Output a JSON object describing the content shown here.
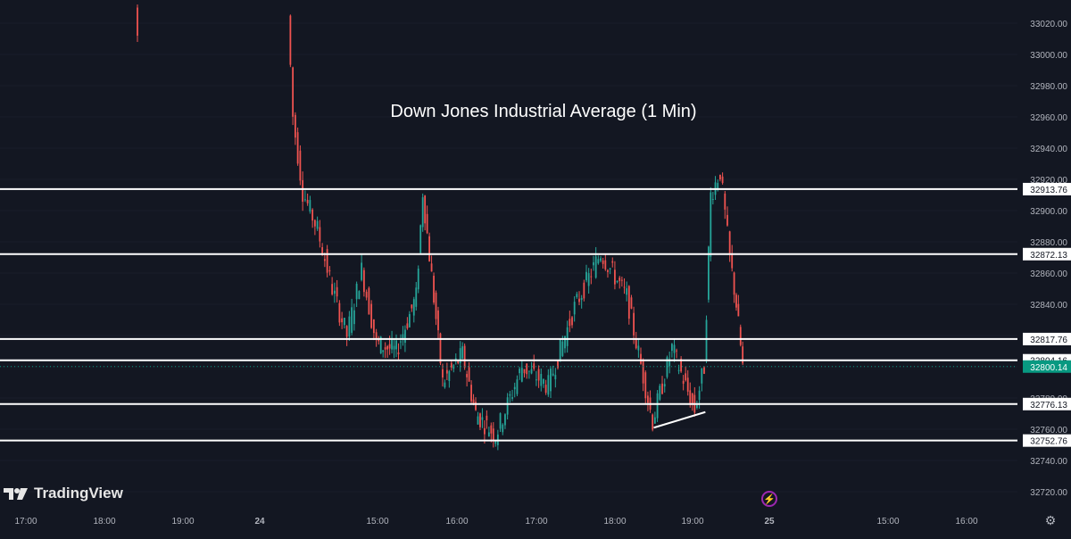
{
  "chart_data": {
    "type": "candlestick",
    "title": "Down Jones Industrial Average (1 Min)",
    "ylim": [
      32710,
      33030
    ],
    "y_ticks": [
      "33020.00",
      "33000.00",
      "32980.00",
      "32960.00",
      "32940.00",
      "32920.00",
      "32900.00",
      "32880.00",
      "32860.00",
      "32840.00",
      "32820.00",
      "32800.00",
      "32780.00",
      "32760.00",
      "32740.00",
      "32720.00"
    ],
    "x_ticks": [
      "17:00",
      "18:00",
      "19:00",
      "24",
      "15:00",
      "16:00",
      "17:00",
      "18:00",
      "19:00",
      "25",
      "15:00",
      "16:00"
    ],
    "levels": [
      {
        "label": "32913.76",
        "value": 32913.76
      },
      {
        "label": "32872.13",
        "value": 32872.13
      },
      {
        "label": "32817.76",
        "value": 32817.76
      },
      {
        "label": "32804.16",
        "value": 32804.16
      },
      {
        "label": "32776.13",
        "value": 32776.13
      },
      {
        "label": "32752.76",
        "value": 32752.76
      }
    ],
    "last_price": {
      "label": "32800.14",
      "value": 32800.14,
      "color": "#089981"
    },
    "trendline": {
      "from": {
        "time": "18:30",
        "price": 32761
      },
      "to": {
        "time": "19:20",
        "price": 32771
      }
    },
    "colors": {
      "up": "#26a69a",
      "down": "#ef5350",
      "background": "#131722",
      "level_line": "#ffffff"
    },
    "price_path": [
      {
        "session": "pre-24",
        "time": "18:25",
        "price": 33030
      },
      {
        "session": "24",
        "time": "13:30",
        "price": 33025
      },
      {
        "session": "24",
        "time": "13:35",
        "price": 32960
      },
      {
        "session": "24",
        "time": "13:45",
        "price": 32912
      },
      {
        "session": "24",
        "time": "14:00",
        "price": 32888
      },
      {
        "session": "24",
        "time": "14:15",
        "price": 32850
      },
      {
        "session": "24",
        "time": "14:30",
        "price": 32820
      },
      {
        "session": "24",
        "time": "14:45",
        "price": 32862
      },
      {
        "session": "24",
        "time": "15:00",
        "price": 32815
      },
      {
        "session": "24",
        "time": "15:15",
        "price": 32810
      },
      {
        "session": "24",
        "time": "15:30",
        "price": 32845
      },
      {
        "session": "24",
        "time": "15:35",
        "price": 32912
      },
      {
        "session": "24",
        "time": "15:50",
        "price": 32790
      },
      {
        "session": "24",
        "time": "16:05",
        "price": 32808
      },
      {
        "session": "24",
        "time": "16:15",
        "price": 32770
      },
      {
        "session": "24",
        "time": "16:30",
        "price": 32756
      },
      {
        "session": "24",
        "time": "16:50",
        "price": 32800
      },
      {
        "session": "24",
        "time": "17:10",
        "price": 32788
      },
      {
        "session": "24",
        "time": "17:30",
        "price": 32838
      },
      {
        "session": "24",
        "time": "17:50",
        "price": 32873
      },
      {
        "session": "24",
        "time": "18:10",
        "price": 32845
      },
      {
        "session": "24",
        "time": "18:30",
        "price": 32765
      },
      {
        "session": "24",
        "time": "18:45",
        "price": 32812
      },
      {
        "session": "24",
        "time": "19:05",
        "price": 32772
      },
      {
        "session": "24",
        "time": "19:20",
        "price": 32800
      },
      {
        "session": "24",
        "time": "19:30",
        "price": 32910
      },
      {
        "session": "24",
        "time": "19:45",
        "price": 32925
      },
      {
        "session": "24",
        "time": "20:00",
        "price": 32870
      },
      {
        "session": "24",
        "time": "20:10",
        "price": 32840
      },
      {
        "session": "24",
        "time": "20:20",
        "price": 32800
      }
    ]
  },
  "branding": {
    "logo_text": "TradingView",
    "logo_icon": "tradingview-logo-icon"
  },
  "icons": {
    "bolt": "lightning-icon",
    "settings": "gear-icon"
  }
}
